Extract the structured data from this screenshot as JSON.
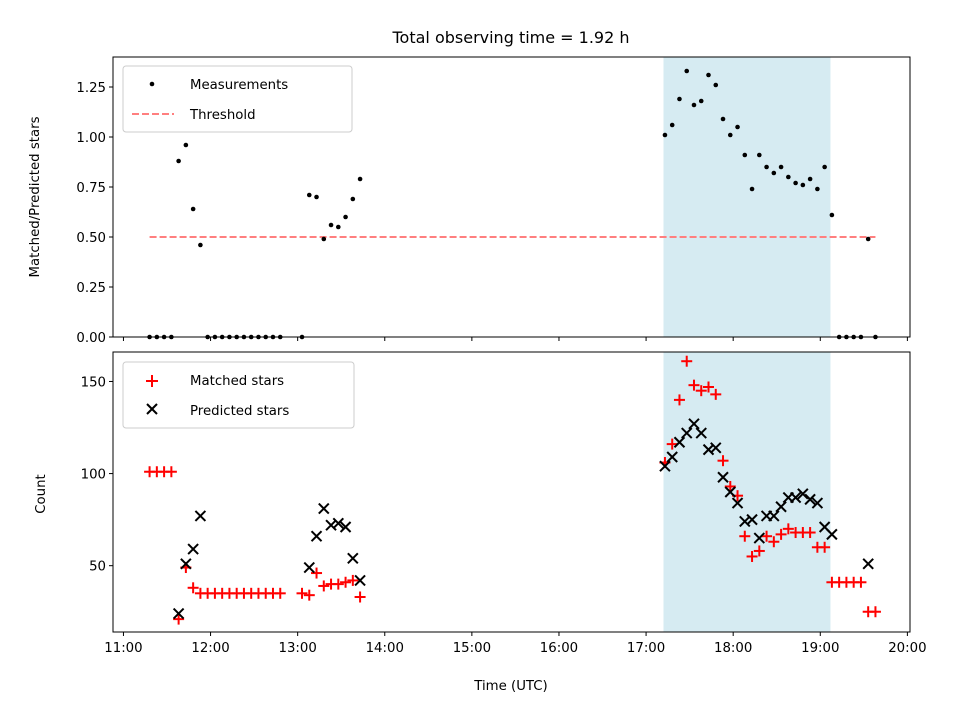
{
  "chart_data": {
    "title": "Total observing time = 1.92 h",
    "xlabel": "Time (UTC)",
    "x_ticks": [
      "11:00",
      "12:00",
      "13:00",
      "14:00",
      "15:00",
      "16:00",
      "17:00",
      "18:00",
      "19:00",
      "20:00"
    ],
    "x_range_hours": [
      10.88,
      20.03
    ],
    "highlight_span": {
      "start": "17:12",
      "end": "19:07",
      "color": "#add8e6"
    },
    "panels": [
      {
        "type": "scatter",
        "ylabel": "Matched/Predicted stars",
        "ylim": [
          0,
          1.4
        ],
        "y_ticks": [
          "0.00",
          "0.25",
          "0.50",
          "0.75",
          "1.00",
          "1.25"
        ],
        "legend_position": "top-left",
        "series": [
          {
            "name": "Measurements",
            "marker": "dot",
            "color": "#000000",
            "points": [
              [
                "11:18",
                0
              ],
              [
                "11:23",
                0
              ],
              [
                "11:28",
                0
              ],
              [
                "11:33",
                0
              ],
              [
                "11:38",
                0.88
              ],
              [
                "11:43",
                0.96
              ],
              [
                "11:48",
                0.64
              ],
              [
                "11:53",
                0.46
              ],
              [
                "11:58",
                0
              ],
              [
                "12:03",
                0
              ],
              [
                "12:08",
                0
              ],
              [
                "12:13",
                0
              ],
              [
                "12:18",
                0
              ],
              [
                "12:23",
                0
              ],
              [
                "12:28",
                0
              ],
              [
                "12:33",
                0
              ],
              [
                "12:38",
                0
              ],
              [
                "12:43",
                0
              ],
              [
                "12:48",
                0
              ],
              [
                "13:03",
                0
              ],
              [
                "13:08",
                0.71
              ],
              [
                "13:13",
                0.7
              ],
              [
                "13:18",
                0.49
              ],
              [
                "13:23",
                0.56
              ],
              [
                "13:28",
                0.55
              ],
              [
                "13:33",
                0.6
              ],
              [
                "13:38",
                0.69
              ],
              [
                "13:43",
                0.79
              ],
              [
                "17:13",
                1.01
              ],
              [
                "17:18",
                1.06
              ],
              [
                "17:23",
                1.19
              ],
              [
                "17:28",
                1.33
              ],
              [
                "17:33",
                1.16
              ],
              [
                "17:38",
                1.18
              ],
              [
                "17:43",
                1.31
              ],
              [
                "17:48",
                1.26
              ],
              [
                "17:53",
                1.09
              ],
              [
                "17:58",
                1.01
              ],
              [
                "18:03",
                1.05
              ],
              [
                "18:08",
                0.91
              ],
              [
                "18:13",
                0.74
              ],
              [
                "18:18",
                0.91
              ],
              [
                "18:23",
                0.85
              ],
              [
                "18:28",
                0.82
              ],
              [
                "18:33",
                0.85
              ],
              [
                "18:38",
                0.8
              ],
              [
                "18:43",
                0.77
              ],
              [
                "18:48",
                0.76
              ],
              [
                "18:53",
                0.79
              ],
              [
                "18:58",
                0.74
              ],
              [
                "19:03",
                0.85
              ],
              [
                "19:08",
                0.61
              ],
              [
                "19:13",
                0
              ],
              [
                "19:18",
                0
              ],
              [
                "19:23",
                0
              ],
              [
                "19:28",
                0
              ],
              [
                "19:33",
                0.49
              ],
              [
                "19:38",
                0
              ]
            ]
          },
          {
            "name": "Threshold",
            "style": "dashed-line",
            "color": "#ff7f7f",
            "value": 0.5,
            "x_from": "11:18",
            "x_to": "19:38"
          }
        ]
      },
      {
        "type": "scatter",
        "ylabel": "Count",
        "ylim": [
          14,
          166
        ],
        "y_ticks": [
          "50",
          "100",
          "150"
        ],
        "legend_position": "top-left",
        "series": [
          {
            "name": "Matched stars",
            "marker": "plus",
            "color": "#ff0000",
            "points": [
              [
                "11:18",
                101
              ],
              [
                "11:23",
                101
              ],
              [
                "11:28",
                101
              ],
              [
                "11:33",
                101
              ],
              [
                "11:38",
                21
              ],
              [
                "11:43",
                49
              ],
              [
                "11:48",
                38
              ],
              [
                "11:53",
                35
              ],
              [
                "11:58",
                35
              ],
              [
                "12:03",
                35
              ],
              [
                "12:08",
                35
              ],
              [
                "12:13",
                35
              ],
              [
                "12:18",
                35
              ],
              [
                "12:23",
                35
              ],
              [
                "12:28",
                35
              ],
              [
                "12:33",
                35
              ],
              [
                "12:38",
                35
              ],
              [
                "12:43",
                35
              ],
              [
                "12:48",
                35
              ],
              [
                "13:03",
                35
              ],
              [
                "13:08",
                34
              ],
              [
                "13:13",
                46
              ],
              [
                "13:18",
                39
              ],
              [
                "13:23",
                40
              ],
              [
                "13:28",
                40
              ],
              [
                "13:33",
                41
              ],
              [
                "13:38",
                42
              ],
              [
                "13:43",
                33
              ],
              [
                "17:13",
                106
              ],
              [
                "17:18",
                116
              ],
              [
                "17:23",
                140
              ],
              [
                "17:28",
                161
              ],
              [
                "17:33",
                148
              ],
              [
                "17:38",
                145
              ],
              [
                "17:43",
                147
              ],
              [
                "17:48",
                143
              ],
              [
                "17:53",
                107
              ],
              [
                "17:58",
                93
              ],
              [
                "18:03",
                88
              ],
              [
                "18:08",
                66
              ],
              [
                "18:13",
                55
              ],
              [
                "18:18",
                58
              ],
              [
                "18:23",
                66
              ],
              [
                "18:28",
                63
              ],
              [
                "18:33",
                67
              ],
              [
                "18:38",
                70
              ],
              [
                "18:43",
                68
              ],
              [
                "18:48",
                68
              ],
              [
                "18:53",
                68
              ],
              [
                "18:58",
                60
              ],
              [
                "19:03",
                60
              ],
              [
                "19:08",
                41
              ],
              [
                "19:13",
                41
              ],
              [
                "19:18",
                41
              ],
              [
                "19:23",
                41
              ],
              [
                "19:28",
                41
              ],
              [
                "19:33",
                25
              ],
              [
                "19:38",
                25
              ]
            ]
          },
          {
            "name": "Predicted stars",
            "marker": "x",
            "color": "#000000",
            "points": [
              [
                "11:38",
                24
              ],
              [
                "11:43",
                51
              ],
              [
                "11:48",
                59
              ],
              [
                "11:53",
                77
              ],
              [
                "13:08",
                49
              ],
              [
                "13:13",
                66
              ],
              [
                "13:18",
                81
              ],
              [
                "13:23",
                72
              ],
              [
                "13:28",
                73
              ],
              [
                "13:33",
                71
              ],
              [
                "13:38",
                54
              ],
              [
                "13:43",
                42
              ],
              [
                "17:13",
                104
              ],
              [
                "17:18",
                109
              ],
              [
                "17:23",
                117
              ],
              [
                "17:28",
                122
              ],
              [
                "17:33",
                127
              ],
              [
                "17:38",
                122
              ],
              [
                "17:43",
                113
              ],
              [
                "17:48",
                114
              ],
              [
                "17:53",
                98
              ],
              [
                "17:58",
                90
              ],
              [
                "18:03",
                84
              ],
              [
                "18:08",
                74
              ],
              [
                "18:13",
                75
              ],
              [
                "18:18",
                65
              ],
              [
                "18:23",
                77
              ],
              [
                "18:28",
                77
              ],
              [
                "18:33",
                82
              ],
              [
                "18:38",
                87
              ],
              [
                "18:43",
                87
              ],
              [
                "18:48",
                89
              ],
              [
                "18:53",
                86
              ],
              [
                "18:58",
                84
              ],
              [
                "19:03",
                71
              ],
              [
                "19:08",
                67
              ],
              [
                "19:33",
                51
              ]
            ]
          }
        ]
      }
    ]
  }
}
